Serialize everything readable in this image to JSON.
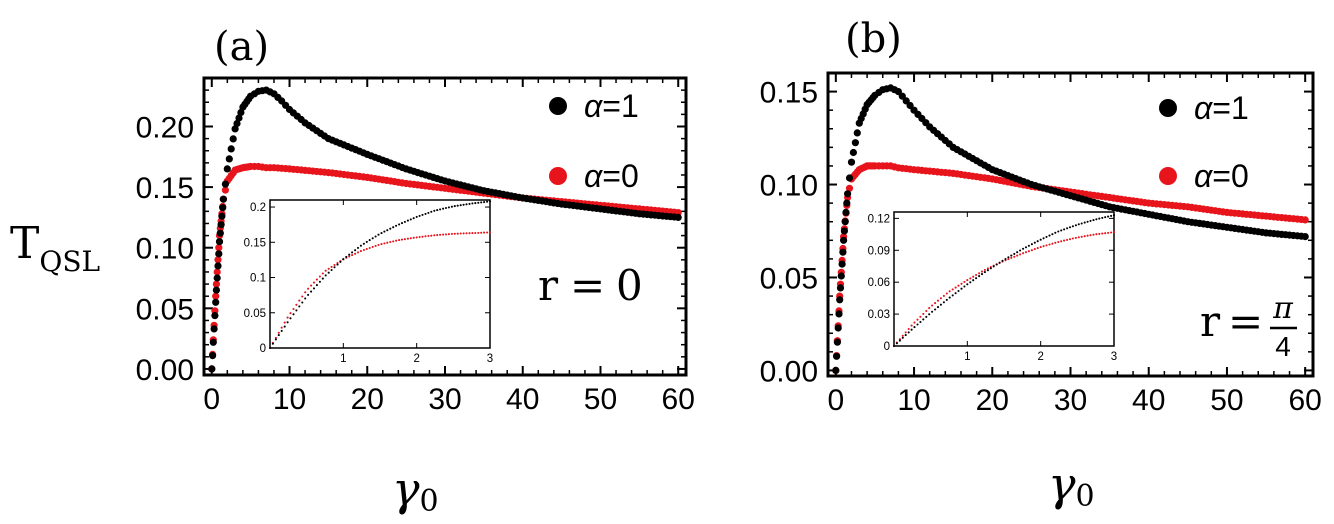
{
  "figure": {
    "ylabel_main": "T",
    "ylabel_sub": "QSL",
    "xlabel_main": "γ",
    "xlabel_sub": "0"
  },
  "colors": {
    "alpha1": "#000000",
    "alpha0": "#e8141c",
    "frame": "#000000",
    "background": "#ffffff"
  },
  "chart_data": [
    {
      "type": "scatter",
      "panel_label": "(a)",
      "title": "",
      "xlabel": "γ0",
      "ylabel": "TQSL",
      "xlim": [
        -1,
        61
      ],
      "ylim": [
        -0.005,
        0.24
      ],
      "xticks": [
        0,
        10,
        20,
        30,
        40,
        50,
        60
      ],
      "yticks": [
        0.0,
        0.05,
        0.1,
        0.15,
        0.2
      ],
      "ytick_labels": [
        "0.00",
        "0.05",
        "0.10",
        "0.15",
        "0.20"
      ],
      "annotation": {
        "lhs": "r",
        "eq": "=",
        "value": "0"
      },
      "legend": [
        {
          "label": "α=1",
          "greek": "α",
          "rest": "=1",
          "color": "#000000"
        },
        {
          "label": "α=0",
          "greek": "α",
          "rest": "=0",
          "color": "#e8141c"
        }
      ],
      "series": [
        {
          "name": "α=1",
          "x": [
            0,
            0.5,
            1,
            1.5,
            2,
            3,
            4,
            5,
            6,
            7,
            8,
            9,
            10,
            12,
            15,
            20,
            25,
            30,
            35,
            40,
            45,
            50,
            55,
            60
          ],
          "y": [
            0.0,
            0.055,
            0.105,
            0.14,
            0.165,
            0.198,
            0.216,
            0.225,
            0.229,
            0.23,
            0.227,
            0.221,
            0.214,
            0.203,
            0.19,
            0.177,
            0.165,
            0.155,
            0.147,
            0.141,
            0.136,
            0.132,
            0.128,
            0.125
          ]
        },
        {
          "name": "α=0",
          "x": [
            0,
            0.5,
            1,
            1.5,
            2,
            3,
            4,
            5,
            6,
            7,
            8,
            10,
            15,
            20,
            25,
            30,
            35,
            40,
            45,
            50,
            55,
            60
          ],
          "y": [
            0.0,
            0.06,
            0.11,
            0.14,
            0.155,
            0.164,
            0.166,
            0.167,
            0.167,
            0.166,
            0.166,
            0.165,
            0.162,
            0.158,
            0.153,
            0.149,
            0.145,
            0.141,
            0.138,
            0.135,
            0.132,
            0.129
          ]
        }
      ],
      "inset": {
        "xlim": [
          0,
          3
        ],
        "ylim": [
          0,
          0.21
        ],
        "xticks": [
          1,
          2,
          3
        ],
        "xtick_labels": [
          "1",
          "2",
          "3"
        ],
        "yticks": [
          0,
          0.05,
          0.1,
          0.15,
          0.2
        ],
        "ytick_labels": [
          "0",
          "0.05",
          "0.1",
          "0.15",
          "0.2"
        ],
        "series": [
          {
            "name": "α=1",
            "x": [
              0,
              0.25,
              0.5,
              0.75,
              1,
              1.25,
              1.5,
              1.75,
              2,
              2.25,
              2.5,
              2.75,
              3
            ],
            "y": [
              0,
              0.038,
              0.073,
              0.102,
              0.126,
              0.146,
              0.162,
              0.175,
              0.186,
              0.195,
              0.201,
              0.205,
              0.208
            ]
          },
          {
            "name": "α=0",
            "x": [
              0,
              0.25,
              0.5,
              0.75,
              1,
              1.25,
              1.5,
              1.75,
              2,
              2.25,
              2.5,
              2.75,
              3
            ],
            "y": [
              0,
              0.045,
              0.082,
              0.109,
              0.126,
              0.138,
              0.147,
              0.153,
              0.157,
              0.16,
              0.162,
              0.163,
              0.164
            ]
          }
        ]
      }
    },
    {
      "type": "scatter",
      "panel_label": "(b)",
      "title": "",
      "xlabel": "γ0",
      "ylabel": "TQSL",
      "xlim": [
        -1,
        61
      ],
      "ylim": [
        -0.003,
        0.16
      ],
      "xticks": [
        0,
        10,
        20,
        30,
        40,
        50,
        60
      ],
      "yticks": [
        0.0,
        0.05,
        0.1,
        0.15
      ],
      "ytick_labels": [
        "0.00",
        "0.05",
        "0.10",
        "0.15"
      ],
      "annotation": {
        "lhs": "r",
        "eq": "=",
        "num": "π",
        "den": "4"
      },
      "legend": [
        {
          "label": "α=1",
          "greek": "α",
          "rest": "=1",
          "color": "#000000"
        },
        {
          "label": "α=0",
          "greek": "α",
          "rest": "=0",
          "color": "#e8141c"
        }
      ],
      "series": [
        {
          "name": "α=1",
          "x": [
            0,
            0.5,
            1,
            1.5,
            2,
            3,
            4,
            5,
            6,
            7,
            8,
            9,
            10,
            12,
            15,
            20,
            25,
            30,
            35,
            40,
            45,
            50,
            55,
            60
          ],
          "y": [
            0.0,
            0.038,
            0.07,
            0.095,
            0.112,
            0.133,
            0.143,
            0.148,
            0.151,
            0.152,
            0.15,
            0.145,
            0.14,
            0.131,
            0.12,
            0.108,
            0.1,
            0.094,
            0.088,
            0.084,
            0.08,
            0.077,
            0.074,
            0.072
          ]
        },
        {
          "name": "α=0",
          "x": [
            0,
            0.5,
            1,
            1.5,
            2,
            3,
            4,
            5,
            6,
            7,
            8,
            10,
            15,
            20,
            25,
            30,
            35,
            40,
            45,
            50,
            55,
            60
          ],
          "y": [
            0.0,
            0.04,
            0.072,
            0.093,
            0.103,
            0.108,
            0.11,
            0.11,
            0.11,
            0.11,
            0.109,
            0.108,
            0.106,
            0.103,
            0.099,
            0.096,
            0.093,
            0.09,
            0.088,
            0.085,
            0.083,
            0.081
          ]
        }
      ],
      "inset": {
        "xlim": [
          0,
          3
        ],
        "ylim": [
          0,
          0.126
        ],
        "xticks": [
          1,
          2,
          3
        ],
        "xtick_labels": [
          "1",
          "2",
          "3"
        ],
        "yticks": [
          0,
          0.03,
          0.06,
          0.09,
          0.12
        ],
        "ytick_labels": [
          "0",
          "0.03",
          "0.06",
          "0.09",
          "0.12"
        ],
        "series": [
          {
            "name": "α=1",
            "x": [
              0,
              0.25,
              0.5,
              0.75,
              1,
              1.25,
              1.5,
              1.75,
              2,
              2.25,
              2.5,
              2.75,
              3
            ],
            "y": [
              0,
              0.016,
              0.031,
              0.045,
              0.058,
              0.07,
              0.081,
              0.091,
              0.1,
              0.108,
              0.114,
              0.119,
              0.123
            ]
          },
          {
            "name": "α=0",
            "x": [
              0,
              0.25,
              0.5,
              0.75,
              1,
              1.25,
              1.5,
              1.75,
              2,
              2.25,
              2.5,
              2.75,
              3
            ],
            "y": [
              0,
              0.02,
              0.037,
              0.051,
              0.062,
              0.072,
              0.08,
              0.087,
              0.093,
              0.098,
              0.102,
              0.105,
              0.107
            ]
          }
        ]
      }
    }
  ]
}
